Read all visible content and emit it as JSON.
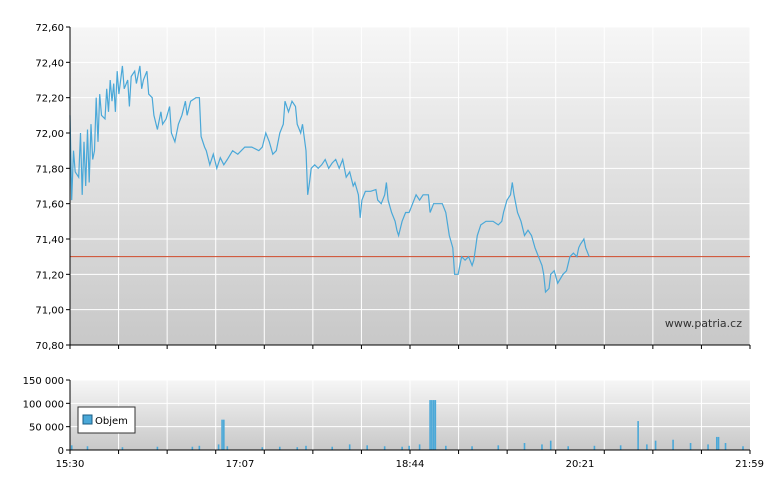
{
  "chart_data": [
    {
      "type": "line",
      "watermark": "www.patria.cz",
      "ylim": [
        70.8,
        72.6
      ],
      "y_ticks": [
        "70,80",
        "71,00",
        "71,20",
        "71,40",
        "71,60",
        "71,80",
        "72,00",
        "72,20",
        "72,40",
        "72,60"
      ],
      "y_tick_values": [
        70.8,
        71.0,
        71.2,
        71.4,
        71.6,
        71.8,
        72.0,
        72.2,
        72.4,
        72.6
      ],
      "reference_line": 71.3,
      "colors": {
        "line": "#4aa8d8",
        "reference": "#d04a2a",
        "bg_top": "#f6f6f6",
        "bg_bottom": "#c8c8c8"
      },
      "x_range": [
        "15:30",
        "21:59"
      ],
      "series": [
        {
          "points": [
            [
              "15:30",
              72.1
            ],
            [
              "15:31",
              71.62
            ],
            [
              "15:32",
              71.9
            ],
            [
              "15:33",
              71.78
            ],
            [
              "15:35",
              71.75
            ],
            [
              "15:36",
              72.0
            ],
            [
              "15:37",
              71.65
            ],
            [
              "15:38",
              71.95
            ],
            [
              "15:39",
              71.7
            ],
            [
              "15:40",
              72.02
            ],
            [
              "15:41",
              71.72
            ],
            [
              "15:42",
              72.05
            ],
            [
              "15:43",
              71.85
            ],
            [
              "15:44",
              71.9
            ],
            [
              "15:45",
              72.2
            ],
            [
              "15:46",
              71.95
            ],
            [
              "15:47",
              72.22
            ],
            [
              "15:48",
              72.1
            ],
            [
              "15:50",
              72.08
            ],
            [
              "15:51",
              72.25
            ],
            [
              "15:52",
              72.12
            ],
            [
              "15:53",
              72.3
            ],
            [
              "15:54",
              72.18
            ],
            [
              "15:55",
              72.28
            ],
            [
              "15:56",
              72.12
            ],
            [
              "15:57",
              72.35
            ],
            [
              "15:58",
              72.22
            ],
            [
              "16:00",
              72.38
            ],
            [
              "16:01",
              72.25
            ],
            [
              "16:03",
              72.3
            ],
            [
              "16:04",
              72.15
            ],
            [
              "16:05",
              72.32
            ],
            [
              "16:07",
              72.35
            ],
            [
              "16:08",
              72.28
            ],
            [
              "16:10",
              72.38
            ],
            [
              "16:11",
              72.25
            ],
            [
              "16:12",
              72.3
            ],
            [
              "16:14",
              72.35
            ],
            [
              "16:15",
              72.22
            ],
            [
              "16:17",
              72.2
            ],
            [
              "16:18",
              72.1
            ],
            [
              "16:20",
              72.02
            ],
            [
              "16:22",
              72.12
            ],
            [
              "16:23",
              72.05
            ],
            [
              "16:25",
              72.08
            ],
            [
              "16:27",
              72.15
            ],
            [
              "16:28",
              72.0
            ],
            [
              "16:30",
              71.95
            ],
            [
              "16:32",
              72.05
            ],
            [
              "16:34",
              72.1
            ],
            [
              "16:36",
              72.18
            ],
            [
              "16:37",
              72.1
            ],
            [
              "16:39",
              72.18
            ],
            [
              "16:42",
              72.2
            ],
            [
              "16:44",
              72.2
            ],
            [
              "16:45",
              71.98
            ],
            [
              "16:47",
              71.92
            ],
            [
              "16:48",
              71.9
            ],
            [
              "16:50",
              71.82
            ],
            [
              "16:52",
              71.88
            ],
            [
              "16:54",
              71.8
            ],
            [
              "16:56",
              71.86
            ],
            [
              "16:58",
              71.82
            ],
            [
              "17:00",
              71.85
            ],
            [
              "17:03",
              71.9
            ],
            [
              "17:06",
              71.88
            ],
            [
              "17:10",
              71.92
            ],
            [
              "17:14",
              71.92
            ],
            [
              "17:18",
              71.9
            ],
            [
              "17:20",
              71.92
            ],
            [
              "17:22",
              72.0
            ],
            [
              "17:24",
              71.95
            ],
            [
              "17:26",
              71.88
            ],
            [
              "17:28",
              71.9
            ],
            [
              "17:30",
              72.0
            ],
            [
              "17:32",
              72.05
            ],
            [
              "17:33",
              72.18
            ],
            [
              "17:35",
              72.12
            ],
            [
              "17:37",
              72.18
            ],
            [
              "17:39",
              72.15
            ],
            [
              "17:40",
              72.05
            ],
            [
              "17:42",
              72.0
            ],
            [
              "17:43",
              72.05
            ],
            [
              "17:45",
              71.9
            ],
            [
              "17:46",
              71.65
            ],
            [
              "17:47",
              71.72
            ],
            [
              "17:48",
              71.8
            ],
            [
              "17:50",
              71.82
            ],
            [
              "17:52",
              71.8
            ],
            [
              "17:54",
              71.82
            ],
            [
              "17:56",
              71.85
            ],
            [
              "17:58",
              71.8
            ],
            [
              "18:00",
              71.83
            ],
            [
              "18:02",
              71.85
            ],
            [
              "18:04",
              71.8
            ],
            [
              "18:06",
              71.85
            ],
            [
              "18:08",
              71.75
            ],
            [
              "18:10",
              71.78
            ],
            [
              "18:12",
              71.7
            ],
            [
              "18:13",
              71.72
            ],
            [
              "18:15",
              71.65
            ],
            [
              "18:16",
              71.52
            ],
            [
              "18:17",
              71.62
            ],
            [
              "18:19",
              71.67
            ],
            [
              "18:22",
              71.67
            ],
            [
              "18:25",
              71.68
            ],
            [
              "18:26",
              71.62
            ],
            [
              "18:28",
              71.6
            ],
            [
              "18:30",
              71.65
            ],
            [
              "18:31",
              71.72
            ],
            [
              "18:32",
              71.62
            ],
            [
              "18:34",
              71.55
            ],
            [
              "18:36",
              71.5
            ],
            [
              "18:37",
              71.45
            ],
            [
              "18:38",
              71.42
            ],
            [
              "18:40",
              71.5
            ],
            [
              "18:42",
              71.55
            ],
            [
              "18:44",
              71.55
            ],
            [
              "18:46",
              71.6
            ],
            [
              "18:48",
              71.65
            ],
            [
              "18:50",
              71.62
            ],
            [
              "18:52",
              71.65
            ],
            [
              "18:55",
              71.65
            ],
            [
              "18:56",
              71.55
            ],
            [
              "18:58",
              71.6
            ],
            [
              "19:00",
              71.6
            ],
            [
              "19:03",
              71.6
            ],
            [
              "19:05",
              71.55
            ],
            [
              "19:07",
              71.42
            ],
            [
              "19:09",
              71.35
            ],
            [
              "19:10",
              71.2
            ],
            [
              "19:12",
              71.2
            ],
            [
              "19:14",
              71.3
            ],
            [
              "19:16",
              71.28
            ],
            [
              "19:18",
              71.3
            ],
            [
              "19:20",
              71.25
            ],
            [
              "19:21",
              71.28
            ],
            [
              "19:22",
              71.35
            ],
            [
              "19:23",
              71.42
            ],
            [
              "19:25",
              71.48
            ],
            [
              "19:28",
              71.5
            ],
            [
              "19:32",
              71.5
            ],
            [
              "19:35",
              71.48
            ],
            [
              "19:37",
              71.5
            ],
            [
              "19:38",
              71.55
            ],
            [
              "19:40",
              71.62
            ],
            [
              "19:42",
              71.65
            ],
            [
              "19:43",
              71.72
            ],
            [
              "19:44",
              71.65
            ],
            [
              "19:46",
              71.55
            ],
            [
              "19:48",
              71.5
            ],
            [
              "19:50",
              71.42
            ],
            [
              "19:52",
              71.45
            ],
            [
              "19:54",
              71.42
            ],
            [
              "19:56",
              71.35
            ],
            [
              "19:58",
              71.3
            ],
            [
              "20:00",
              71.25
            ],
            [
              "20:01",
              71.2
            ],
            [
              "20:02",
              71.1
            ],
            [
              "20:04",
              71.12
            ],
            [
              "20:05",
              71.2
            ],
            [
              "20:07",
              71.22
            ],
            [
              "20:09",
              71.15
            ],
            [
              "20:12",
              71.2
            ],
            [
              "20:14",
              71.22
            ],
            [
              "20:16",
              71.3
            ],
            [
              "20:18",
              71.32
            ],
            [
              "20:20",
              71.3
            ],
            [
              "20:21",
              71.35
            ],
            [
              "20:22",
              71.37
            ],
            [
              "20:24",
              71.4
            ],
            [
              "20:25",
              71.35
            ],
            [
              "20:27",
              71.3
            ]
          ]
        }
      ]
    },
    {
      "type": "bar",
      "ylim": [
        0,
        150000
      ],
      "y_ticks": [
        "0",
        "50 000",
        "100 000",
        "150 000"
      ],
      "y_tick_values": [
        0,
        50000,
        100000,
        150000
      ],
      "x_ticks": [
        "15:30",
        "17:07",
        "18:44",
        "20:21",
        "21:59"
      ],
      "legend": {
        "label": "Objem",
        "placement": "top-left"
      },
      "colors": {
        "bar": "#4aa8d8",
        "bg_top": "#f6f6f6",
        "bg_bottom": "#c8c8c8"
      },
      "series": [
        {
          "name": "Objem",
          "points": [
            [
              "15:31",
              10000
            ],
            [
              "15:40",
              8000
            ],
            [
              "16:00",
              6000
            ],
            [
              "16:20",
              7000
            ],
            [
              "16:40",
              7000
            ],
            [
              "16:44",
              9000
            ],
            [
              "16:55",
              12000
            ],
            [
              "16:57",
              65000
            ],
            [
              "16:58",
              65000
            ],
            [
              "17:00",
              8000
            ],
            [
              "17:20",
              6000
            ],
            [
              "17:30",
              7000
            ],
            [
              "17:40",
              6000
            ],
            [
              "17:45",
              9000
            ],
            [
              "18:00",
              7000
            ],
            [
              "18:10",
              12000
            ],
            [
              "18:20",
              10000
            ],
            [
              "18:30",
              8000
            ],
            [
              "18:40",
              7000
            ],
            [
              "18:44",
              9000
            ],
            [
              "18:50",
              12000
            ],
            [
              "18:56",
              107000
            ],
            [
              "18:57",
              107000
            ],
            [
              "18:58",
              107000
            ],
            [
              "18:59",
              107000
            ],
            [
              "19:05",
              9000
            ],
            [
              "19:20",
              8000
            ],
            [
              "19:35",
              10000
            ],
            [
              "19:50",
              15000
            ],
            [
              "20:00",
              12000
            ],
            [
              "20:05",
              20000
            ],
            [
              "20:15",
              8000
            ],
            [
              "20:30",
              9000
            ],
            [
              "20:45",
              10000
            ],
            [
              "20:55",
              62000
            ],
            [
              "21:00",
              12000
            ],
            [
              "21:05",
              20000
            ],
            [
              "21:15",
              22000
            ],
            [
              "21:25",
              15000
            ],
            [
              "21:35",
              12000
            ],
            [
              "21:40",
              28000
            ],
            [
              "21:41",
              28000
            ],
            [
              "21:45",
              15000
            ],
            [
              "21:55",
              8000
            ]
          ]
        }
      ]
    }
  ]
}
